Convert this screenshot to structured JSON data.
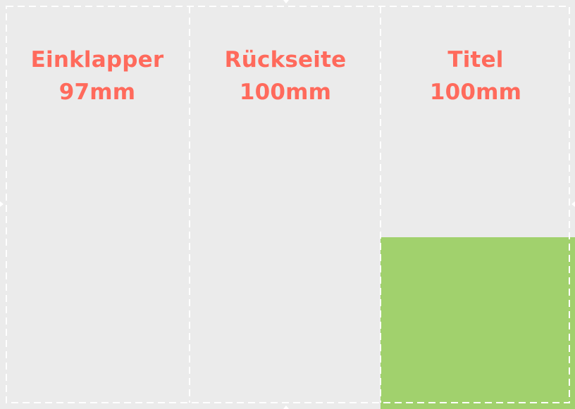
{
  "panels": [
    {
      "name": "Einklapper",
      "size": "97mm"
    },
    {
      "name": "Rückseite",
      "size": "100mm"
    },
    {
      "name": "Titel",
      "size": "100mm"
    }
  ],
  "colors": {
    "background": "#ebebeb",
    "label": "#ff6a5c",
    "accent_block": "#a1d16d",
    "guide_lines": "#ffffff"
  }
}
